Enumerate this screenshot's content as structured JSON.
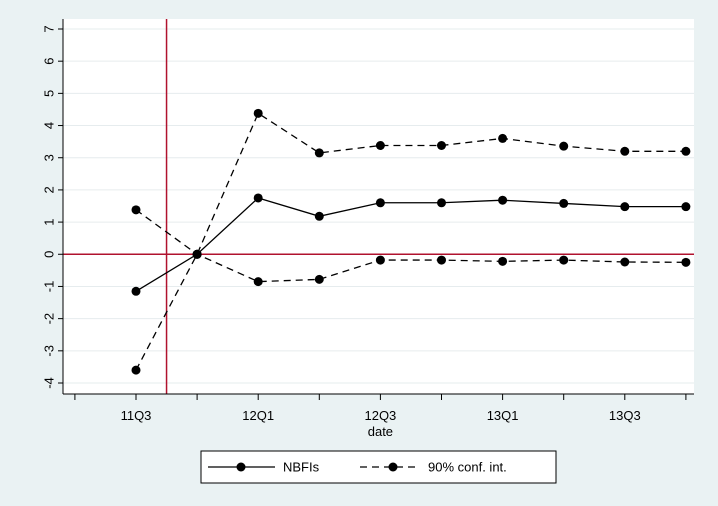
{
  "chart_data": {
    "type": "line",
    "xlabel": "date",
    "ylabel": "",
    "x_tick_labels": [
      "11Q3",
      "12Q1",
      "12Q3",
      "13Q1",
      "13Q3"
    ],
    "x": [
      "11Q3",
      "11Q4",
      "12Q1",
      "12Q2",
      "12Q3",
      "12Q4",
      "13Q1",
      "13Q2",
      "13Q3",
      "13Q4"
    ],
    "ylim": [
      -4,
      7
    ],
    "y_ticks": [
      -4,
      -3,
      -2,
      -1,
      0,
      1,
      2,
      3,
      4,
      5,
      6,
      7
    ],
    "grid": true,
    "vertical_reference_at": "between 11Q3 and 11Q4",
    "horizontal_reference_at": 0,
    "series": [
      {
        "name": "NBFIs",
        "style": "solid",
        "values": [
          -1.15,
          0.0,
          1.75,
          1.18,
          1.6,
          1.6,
          1.68,
          1.58,
          1.48,
          1.48
        ]
      },
      {
        "name": "90% conf. int.",
        "style": "dashed",
        "values": [
          -3.6,
          0.0,
          4.38,
          3.15,
          3.38,
          3.38,
          3.6,
          3.36,
          3.2,
          3.2
        ]
      },
      {
        "name": "",
        "style": "dashed",
        "values": [
          1.38,
          0.0,
          -0.85,
          -0.78,
          -0.18,
          -0.18,
          -0.22,
          -0.18,
          -0.24,
          -0.25
        ]
      }
    ],
    "legend": {
      "position": "bottom",
      "entries": [
        "NBFIs",
        "90% conf. int."
      ]
    },
    "colors": {
      "background": "#eaf2f3",
      "plot_area": "#ffffff",
      "reference_line": "#b0122e",
      "series": "#000000",
      "grid": "#e6ecee"
    }
  }
}
